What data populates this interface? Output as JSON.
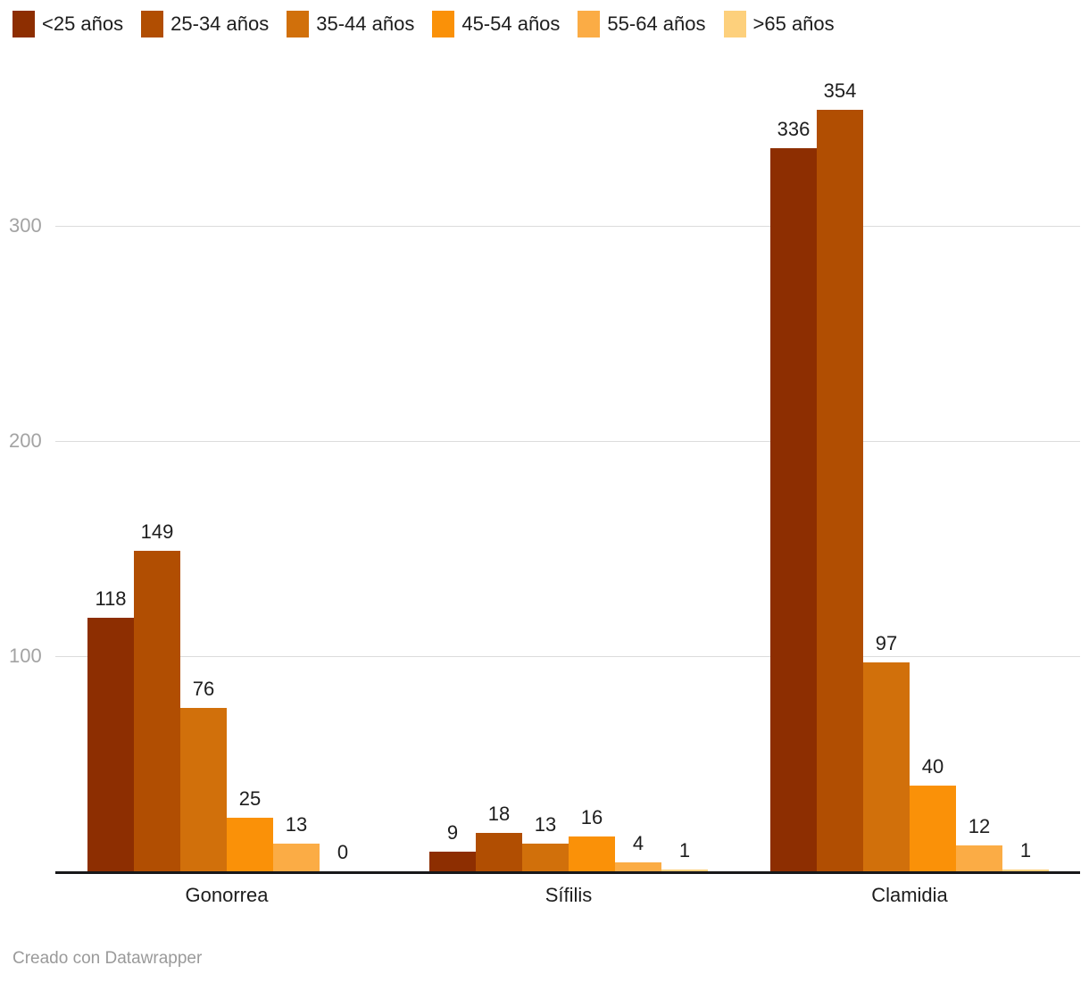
{
  "chart_data": {
    "type": "bar",
    "title": "",
    "categories": [
      "Gonorrea",
      "Sífilis",
      "Clamidia"
    ],
    "series": [
      {
        "name": "<25 años",
        "color": "#8d2e01",
        "values": [
          118,
          9,
          336
        ]
      },
      {
        "name": "25-34 años",
        "color": "#b14e02",
        "values": [
          149,
          18,
          354
        ]
      },
      {
        "name": "35-44 años",
        "color": "#d1700b",
        "values": [
          76,
          13,
          97
        ]
      },
      {
        "name": "45-54 años",
        "color": "#fa9108",
        "values": [
          25,
          16,
          40
        ]
      },
      {
        "name": "55-64 años",
        "color": "#fbac45",
        "values": [
          13,
          4,
          12
        ]
      },
      {
        "name": ">65 años",
        "color": "#fdd07c",
        "values": [
          0,
          1,
          1
        ]
      }
    ],
    "y_ticks": [
      100,
      200,
      300
    ],
    "ylim": [
      0,
      370
    ],
    "grid": true,
    "legend_position": "top",
    "xlabel": "",
    "ylabel": ""
  },
  "footer": {
    "credit": "Creado con Datawrapper"
  },
  "colors": {
    "background": "#ffffff",
    "axis_line": "#18181a",
    "grid_line": "#dcdcdc",
    "tick_label": "#a3a3a3",
    "value_label": "#1d1d1d",
    "category_label": "#1d1d1d",
    "footer_text": "#9a9a9a"
  }
}
